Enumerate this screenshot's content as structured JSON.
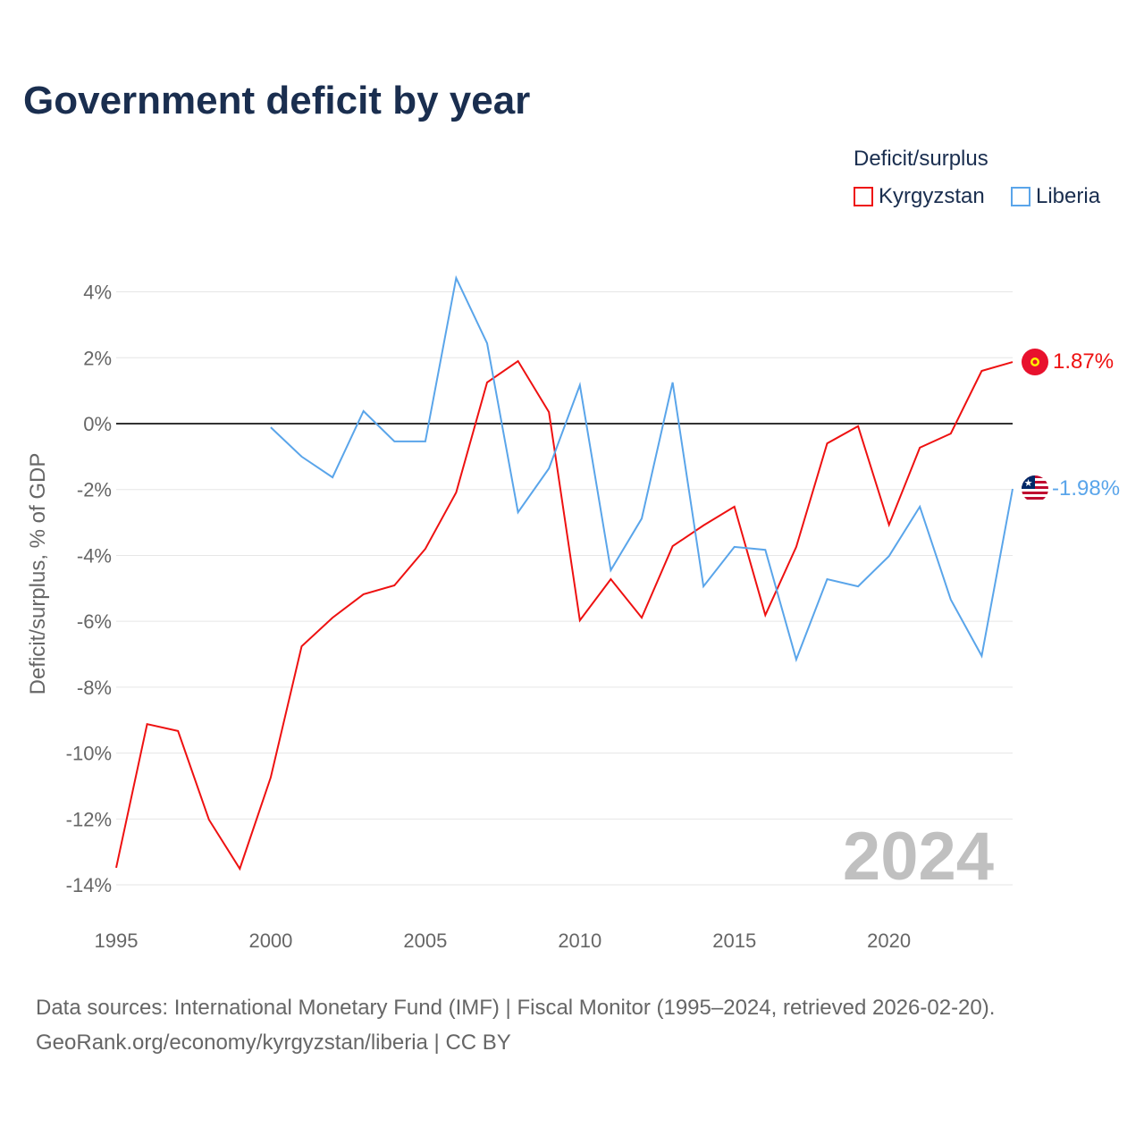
{
  "title": "Government deficit by year",
  "legend": {
    "title": "Deficit/surplus",
    "items": [
      {
        "name": "Kyrgyzstan",
        "color": "#ee1111"
      },
      {
        "name": "Liberia",
        "color": "#5aa5ea"
      }
    ]
  },
  "watermark_year": "2024",
  "sources": [
    "Data sources: International Monetary Fund (IMF) | Fiscal Monitor (1995–2024, retrieved 2026-02-20).",
    "GeoRank.org/economy/kyrgyzstan/liberia | CC BY"
  ],
  "chart_data": {
    "type": "line",
    "title": "Government deficit by year",
    "xlabel": "",
    "ylabel": "Deficit/surplus, % of GDP",
    "xlim": [
      1995,
      2024
    ],
    "ylim": [
      -14.5,
      4.5
    ],
    "yticks": [
      4,
      2,
      0,
      -2,
      -4,
      -6,
      -8,
      -10,
      -12,
      -14
    ],
    "ytick_labels": [
      "4%",
      "2%",
      "0%",
      "-2%",
      "-4%",
      "-6%",
      "-8%",
      "-10%",
      "-12%",
      "-14%"
    ],
    "xticks": [
      1995,
      2000,
      2005,
      2010,
      2015,
      2020
    ],
    "xtick_labels": [
      "1995",
      "2000",
      "2005",
      "2010",
      "2015",
      "2020"
    ],
    "grid": true,
    "legend_position": "top-right",
    "series": [
      {
        "name": "Kyrgyzstan",
        "color": "#ee1111",
        "end_label": "1.87%",
        "x": [
          1995,
          1996,
          1997,
          1998,
          1999,
          2000,
          2001,
          2002,
          2003,
          2004,
          2005,
          2006,
          2007,
          2008,
          2009,
          2010,
          2011,
          2012,
          2013,
          2014,
          2015,
          2016,
          2017,
          2018,
          2019,
          2020,
          2021,
          2022,
          2023,
          2024
        ],
        "values": [
          -13.48,
          -9.12,
          -9.33,
          -12.02,
          -13.51,
          -10.74,
          -6.76,
          -5.89,
          -5.18,
          -4.91,
          -3.8,
          -2.09,
          1.25,
          1.9,
          0.35,
          -5.97,
          -4.72,
          -5.89,
          -3.72,
          -3.09,
          -2.52,
          -5.81,
          -3.74,
          -0.6,
          -0.08,
          -3.07,
          -0.73,
          -0.3,
          1.6,
          1.87
        ]
      },
      {
        "name": "Liberia",
        "color": "#5aa5ea",
        "end_label": "-1.98%",
        "x": [
          2000,
          2001,
          2002,
          2003,
          2004,
          2005,
          2006,
          2007,
          2008,
          2009,
          2010,
          2011,
          2012,
          2013,
          2014,
          2015,
          2016,
          2017,
          2018,
          2019,
          2020,
          2021,
          2022,
          2023,
          2024
        ],
        "values": [
          -0.11,
          -1.0,
          -1.63,
          0.38,
          -0.54,
          -0.54,
          4.42,
          2.44,
          -2.69,
          -1.36,
          1.17,
          -4.45,
          -2.88,
          1.25,
          -4.94,
          -3.74,
          -3.83,
          -7.16,
          -4.72,
          -4.94,
          -4.02,
          -2.52,
          -5.34,
          -7.05,
          -1.98
        ]
      }
    ]
  }
}
